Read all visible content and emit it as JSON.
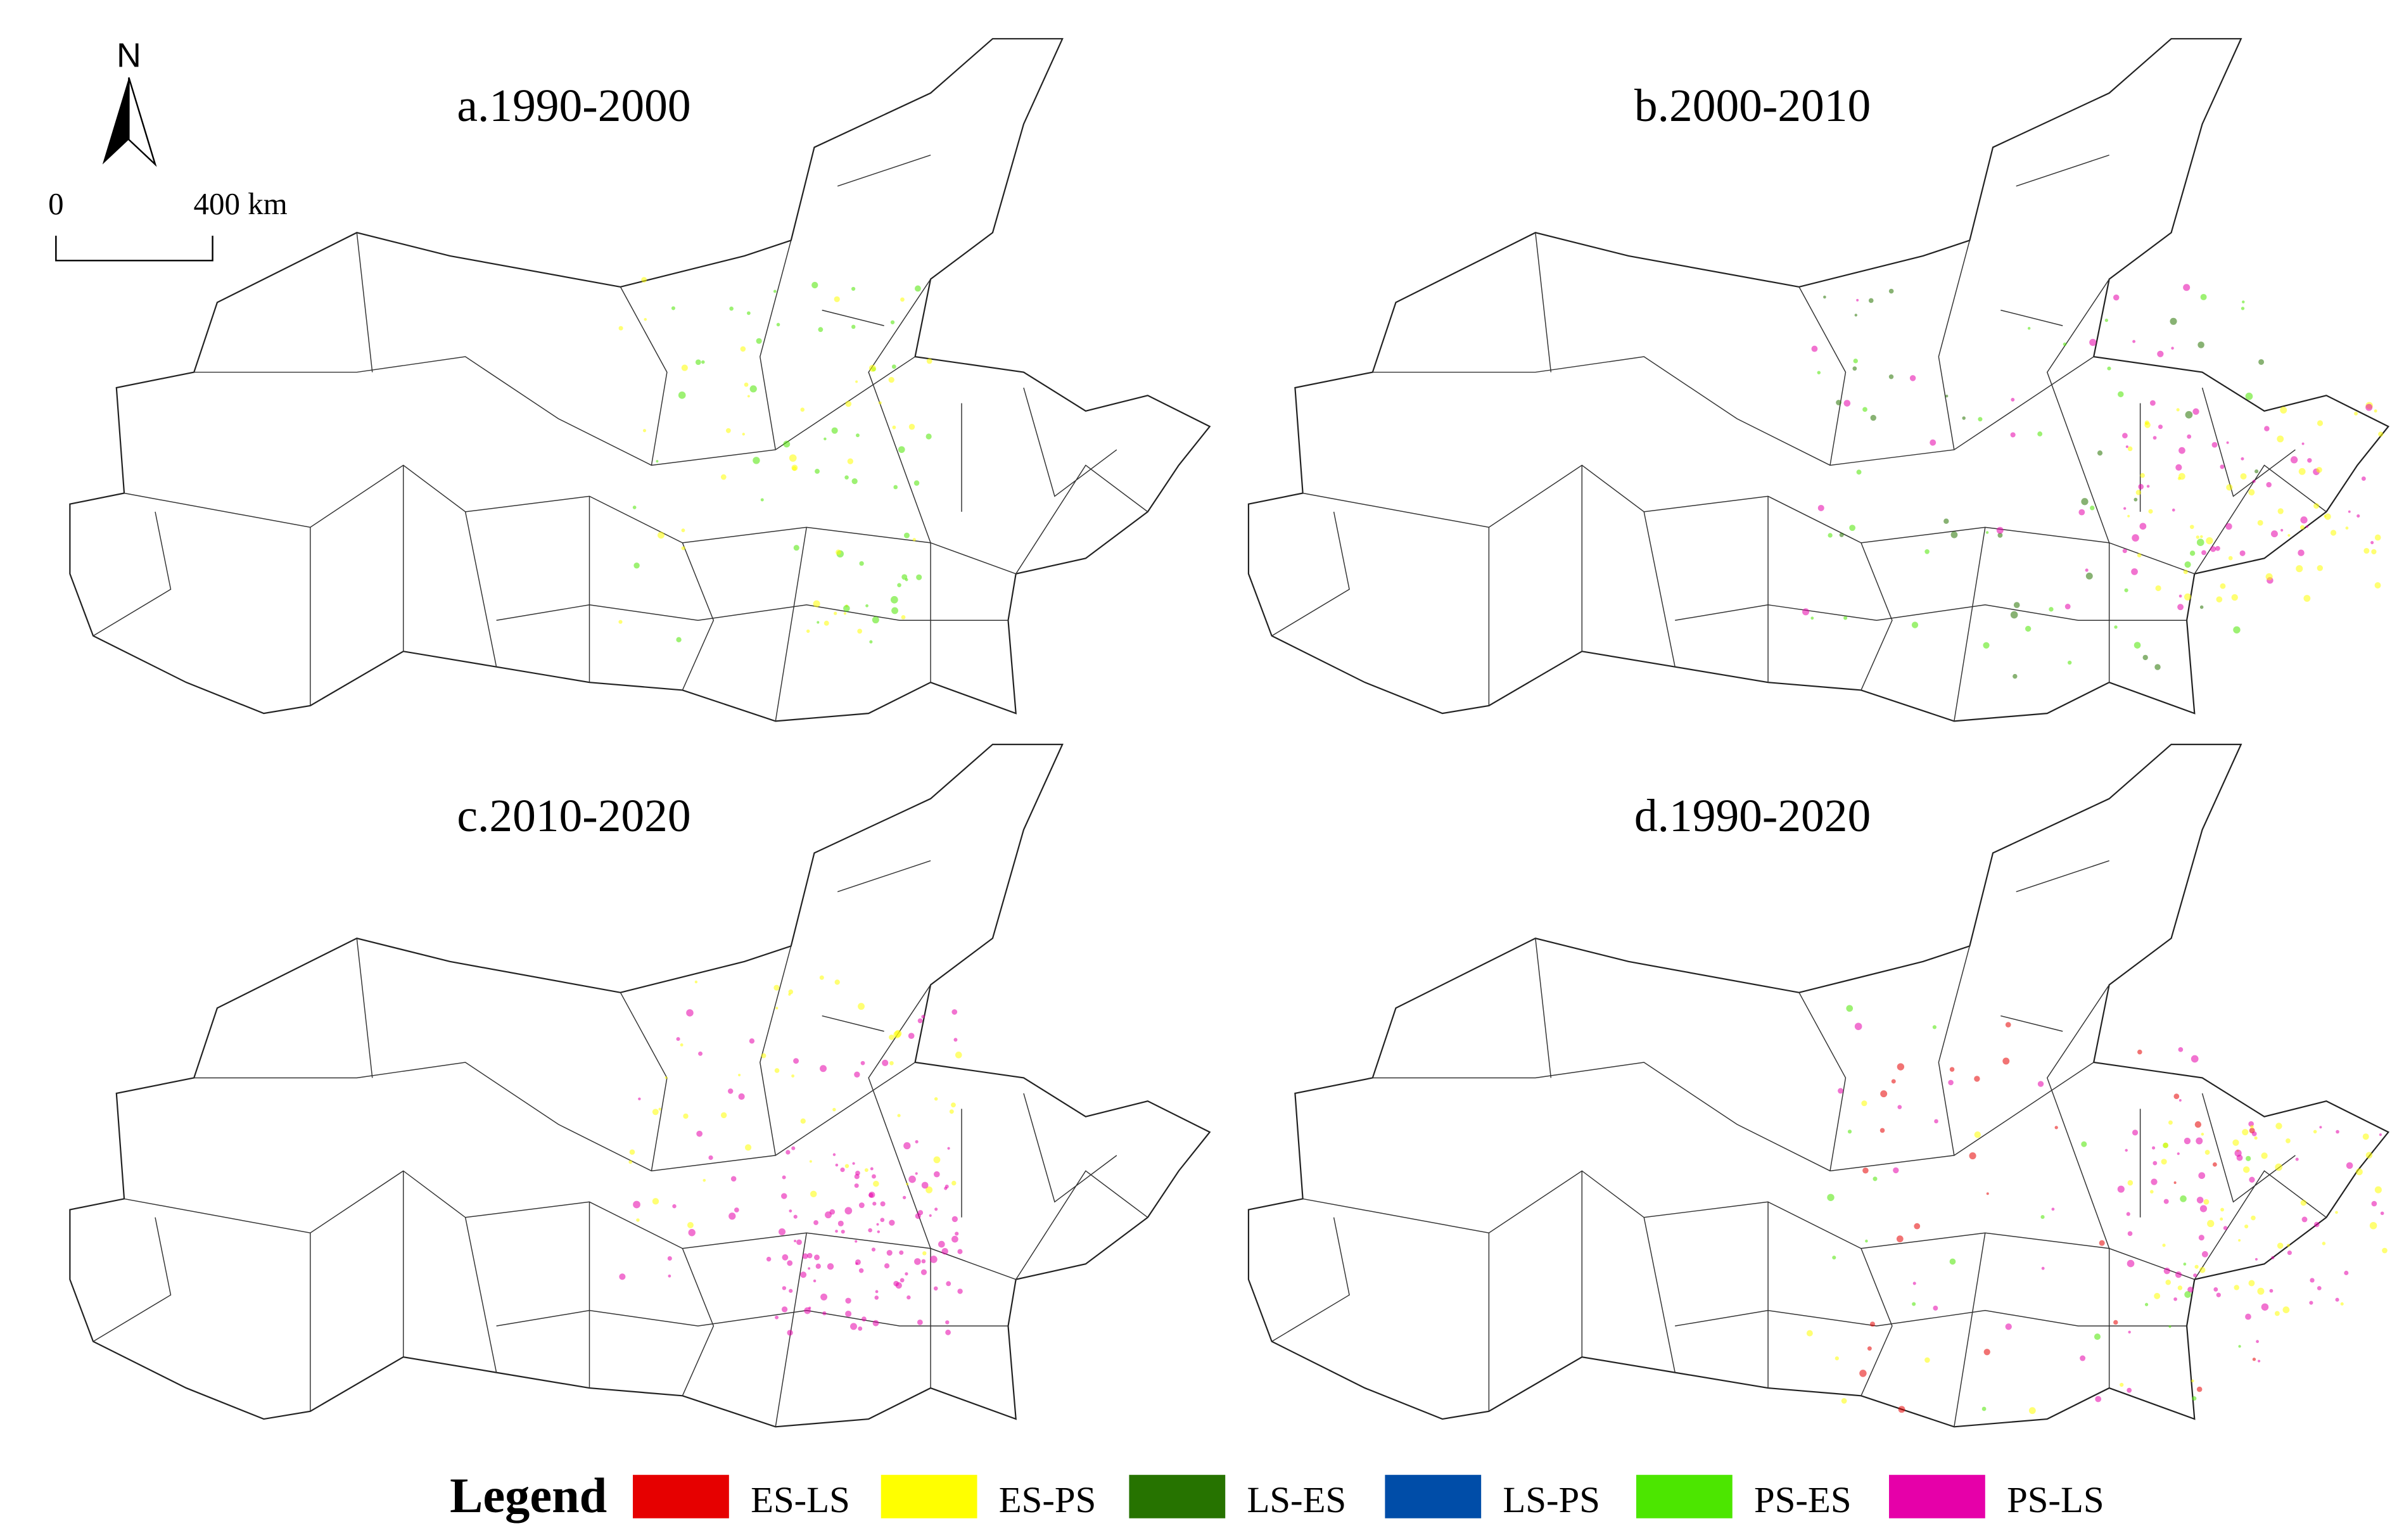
{
  "panels": [
    {
      "title": "a.1990-2000"
    },
    {
      "title": "b.2000-2010"
    },
    {
      "title": "c.2010-2020"
    },
    {
      "title": "d.1990-2020"
    }
  ],
  "north_arrow": {
    "label": "N"
  },
  "scale_bar": {
    "start_label": "0",
    "end_label": "400 km"
  },
  "legend": {
    "title": "Legend",
    "items": [
      {
        "label": "ES-LS",
        "color": "#e60000"
      },
      {
        "label": "ES-PS",
        "color": "#ffff00"
      },
      {
        "label": "LS-ES",
        "color": "#267300"
      },
      {
        "label": "LS-PS",
        "color": "#004da8"
      },
      {
        "label": "PS-ES",
        "color": "#4ce600"
      },
      {
        "label": "PS-LS",
        "color": "#e600a9"
      }
    ]
  }
}
